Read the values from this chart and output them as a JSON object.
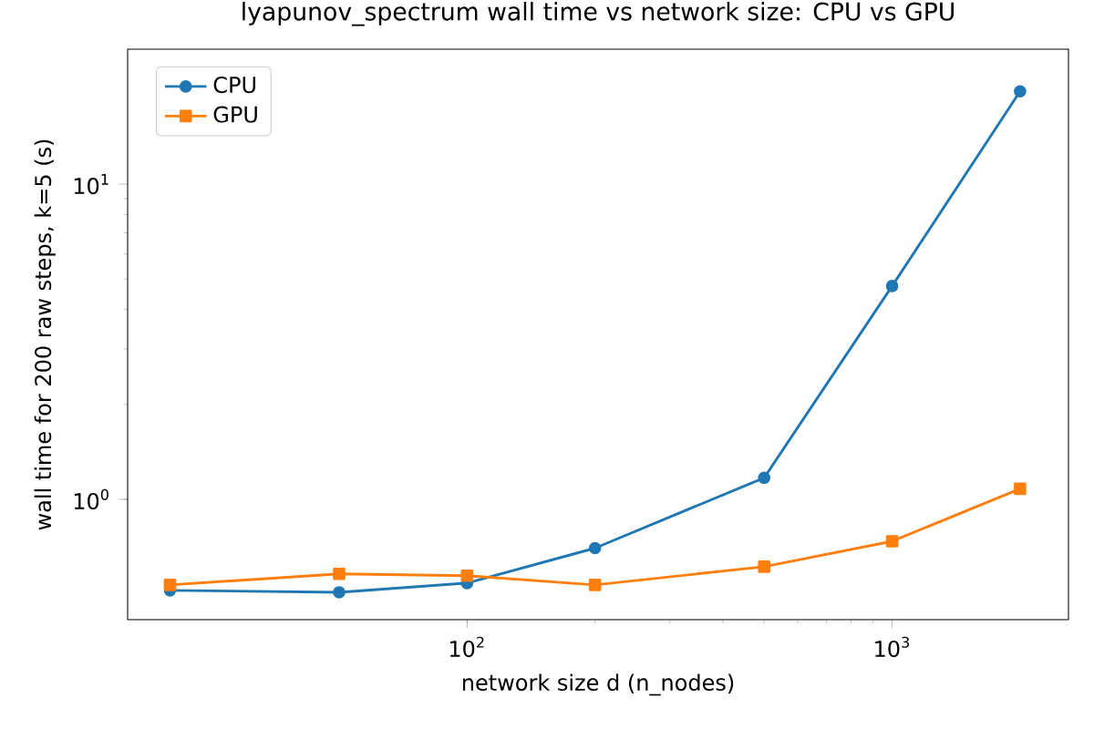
{
  "chart_data": {
    "type": "line",
    "title": "lyapunov_spectrum wall time vs network size: CPU vs GPU",
    "xlabel": "network size d (n_nodes)",
    "ylabel": "wall time for 200 raw steps, k=5 (s)",
    "x": [
      20,
      50,
      100,
      200,
      500,
      1000,
      2000
    ],
    "series": [
      {
        "name": "CPU",
        "color": "#1f77b4",
        "marker": "circle",
        "values": [
          0.514,
          0.507,
          0.542,
          0.7,
          1.17,
          4.75,
          19.7
        ]
      },
      {
        "name": "GPU",
        "color": "#ff7f0e",
        "marker": "square",
        "values": [
          0.535,
          0.58,
          0.572,
          0.535,
          0.611,
          0.736,
          1.08
        ]
      }
    ],
    "log": "xy",
    "xlim": [
      15.9,
      2600
    ],
    "ylim": [
      0.415,
      26.8
    ],
    "xticks": [
      {
        "value": 100,
        "label": "10$^{2}$"
      },
      {
        "value": 1000,
        "label": "10$^{3}$"
      }
    ],
    "yticks": [
      {
        "value": 1,
        "label": "10$^{0}$"
      },
      {
        "value": 10,
        "label": "10$^{1}$"
      }
    ],
    "legend": "top left",
    "grid": false,
    "line_style": "solid"
  }
}
